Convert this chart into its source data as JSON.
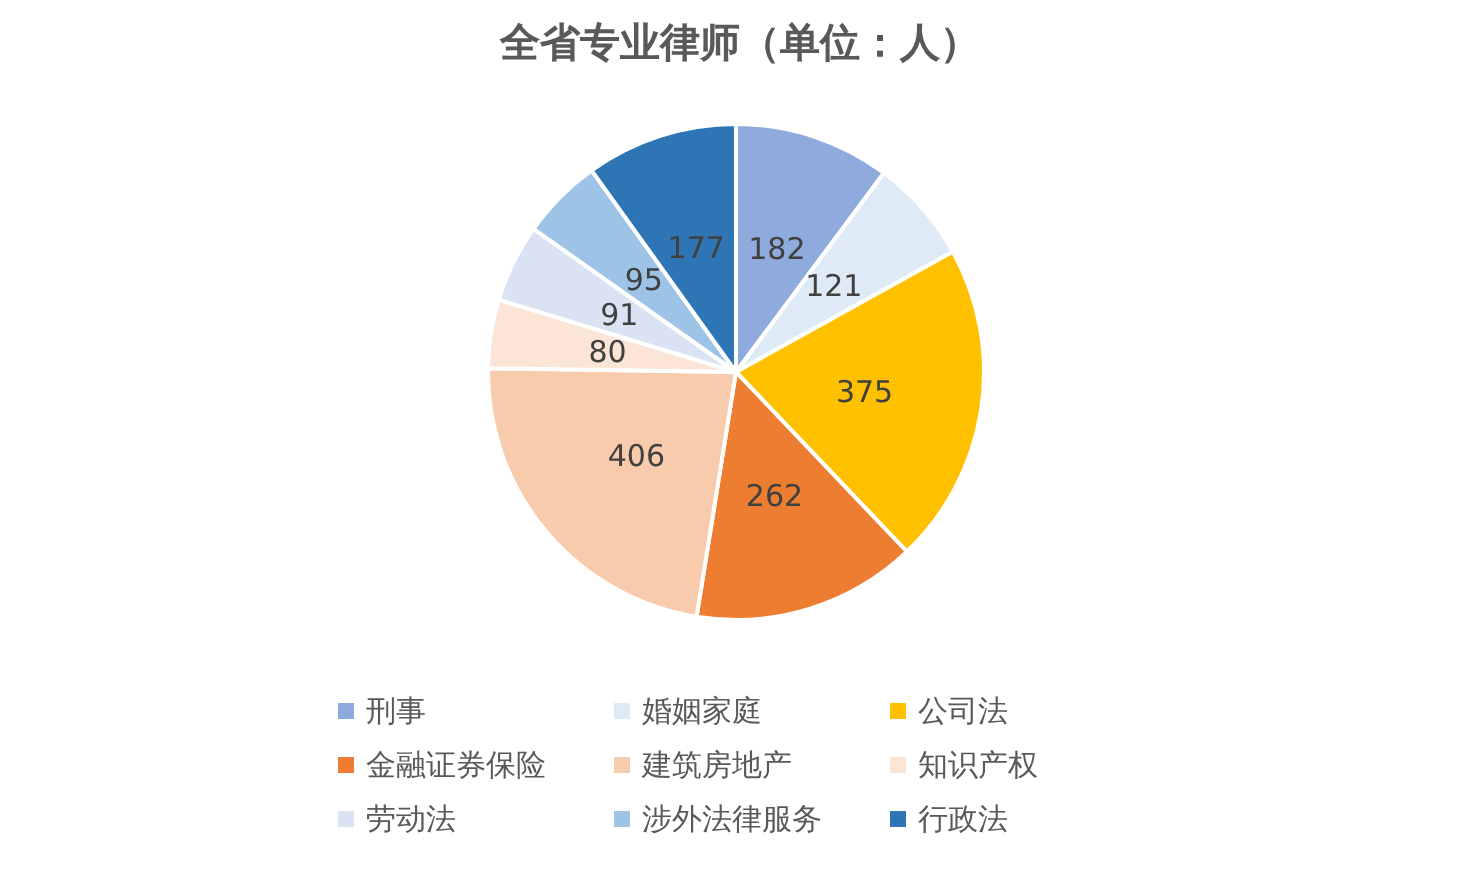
{
  "chart_data": {
    "type": "pie",
    "title": "全省专业律师（单位：人）",
    "categories": [
      "刑事",
      "婚姻家庭",
      "公司法",
      "金融证券保险",
      "建筑房地产",
      "知识产权",
      "劳动法",
      "涉外法律服务",
      "行政法"
    ],
    "values": [
      182,
      121,
      375,
      262,
      406,
      80,
      91,
      95,
      177
    ],
    "colors": [
      "#8faadc",
      "#deebf7",
      "#ffc000",
      "#ed7d31",
      "#f8cbad",
      "#fbe5d6",
      "#dae3f3",
      "#9dc3e6",
      "#2e75b6"
    ],
    "data_labels": true,
    "legend": "bottom"
  }
}
